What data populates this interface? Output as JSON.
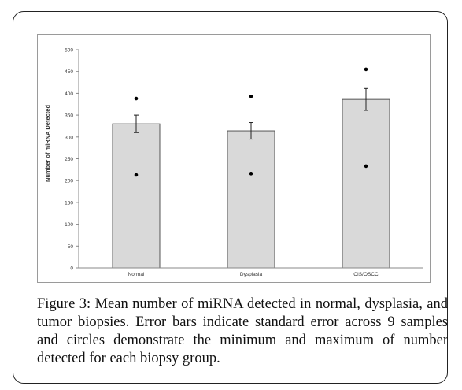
{
  "chart_data": {
    "type": "bar",
    "title": "",
    "xlabel": "",
    "ylabel": "Number of miRNA Detected",
    "categories": [
      "Normal",
      "Dysplasia",
      "CIS/OSCC"
    ],
    "values": [
      330,
      314,
      386
    ],
    "error": [
      20,
      19,
      25
    ],
    "min": [
      213,
      216,
      233
    ],
    "max": [
      388,
      393,
      455
    ],
    "ylim": [
      0,
      500
    ],
    "yticks": [
      "0",
      "50",
      "100",
      "150",
      "200",
      "250",
      "300",
      "350",
      "400",
      "450",
      "500"
    ],
    "grid": false,
    "legend": "none",
    "colors": {
      "bar_fill": "#d9d9d9",
      "bar_stroke": "#555555",
      "marker": "#000000",
      "axis": "#888888"
    }
  },
  "caption": "Figure 3: Mean number of miRNA detected in normal, dysplasia, and tumor biopsies. Error bars indicate standard error across 9 samples and circles demonstrate the minimum and maximum of number detected for each biopsy group."
}
